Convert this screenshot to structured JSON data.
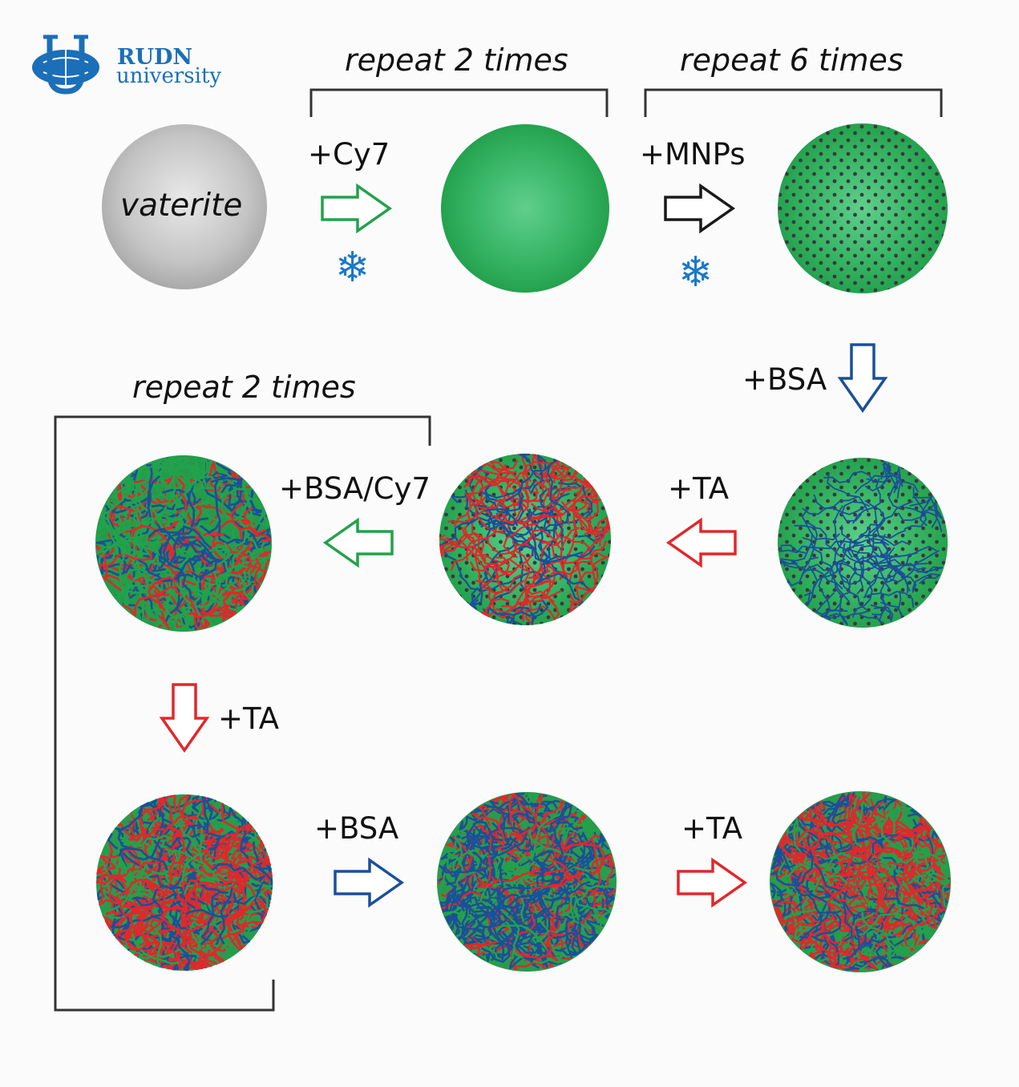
{
  "logo": {
    "name": "RUDN",
    "subname": "university",
    "color": "#1b6fb8"
  },
  "brackets": {
    "top_left": "repeat 2 times",
    "top_right": "repeat 6 times",
    "middle_left": "repeat 2 times"
  },
  "particles": {
    "vaterite": "vaterite"
  },
  "steps": {
    "cy7": "+Cy7",
    "mnps": "+MNPs",
    "bsa_down": "+BSA",
    "ta_middle": "+TA",
    "bsa_cy7": "+BSA/Cy7",
    "ta_down": "+TA",
    "bsa_bottom": "+BSA",
    "ta_bottom": "+TA"
  },
  "freeze_icon": "snowflake-icon",
  "colors": {
    "green": "#22a24b",
    "red": "#e0282b",
    "blue": "#1b4f9a",
    "gray": "#b9b9b9",
    "black": "#222222",
    "snowflake": "#1b78c8"
  }
}
